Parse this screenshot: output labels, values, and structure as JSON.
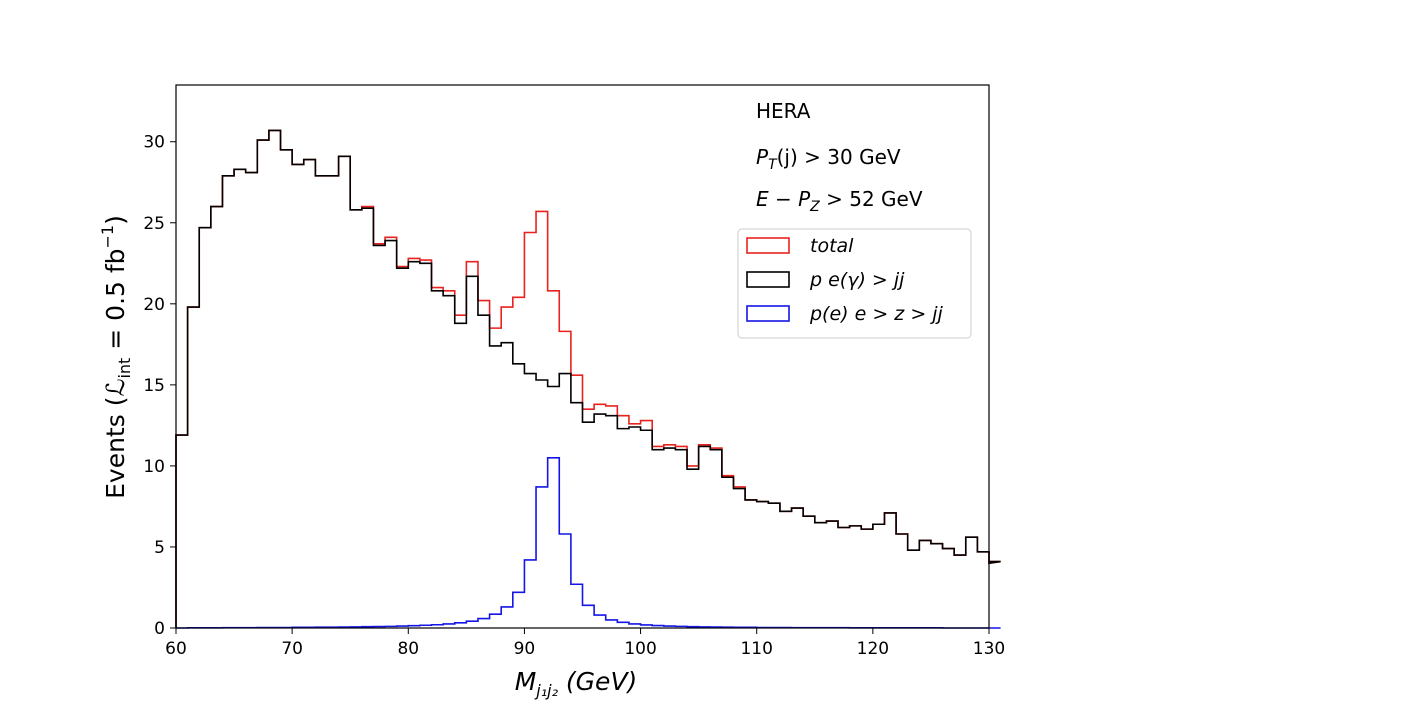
{
  "chart_data": {
    "type": "histogram",
    "xlabel": "M",
    "xlabel_sub": "j₁j₂",
    "xlabel_unit": " (GeV)",
    "ylabel_prefix": "Events (",
    "ylabel_L": "ℒ",
    "ylabel_sub": "int",
    "ylabel_suffix": " = 0.5 fb",
    "ylabel_sup": "−1",
    "ylabel_close": ")",
    "xlim": [
      60,
      130
    ],
    "ylim": [
      0,
      33.5
    ],
    "xticks": [
      "60",
      "70",
      "80",
      "90",
      "100",
      "110",
      "120",
      "130"
    ],
    "yticks": [
      "0",
      "5",
      "10",
      "15",
      "20",
      "25",
      "30"
    ],
    "bin_edges_start": 60,
    "bin_width": 1,
    "annotations": {
      "line1": "HERA",
      "line2_P": "P",
      "line2_sub": "T",
      "line2_rest": "(j) > 30 GeV",
      "line3_E": "E − P",
      "line3_sub": "Z",
      "line3_rest": " > 52 GeV"
    },
    "legend": {
      "position": "upper-right"
    },
    "series": [
      {
        "name": "total",
        "color": "#e8231f",
        "values": [
          11.9,
          19.8,
          24.7,
          26.0,
          27.9,
          28.3,
          28.1,
          30.1,
          30.7,
          29.5,
          28.6,
          28.9,
          27.9,
          27.9,
          29.1,
          25.8,
          26.0,
          23.7,
          24.1,
          22.3,
          22.8,
          22.7,
          21.0,
          20.8,
          19.3,
          22.6,
          20.2,
          18.5,
          19.8,
          20.4,
          24.4,
          25.7,
          20.8,
          18.3,
          15.6,
          13.5,
          13.8,
          13.7,
          13.1,
          12.6,
          12.8,
          11.2,
          11.3,
          11.2,
          10.0,
          11.3,
          11.1,
          9.4,
          8.7,
          7.9,
          7.8,
          7.7,
          7.2,
          7.4,
          6.9,
          6.5,
          6.6,
          6.2,
          6.3,
          6.1,
          6.4,
          7.1,
          5.8,
          4.8,
          5.4,
          5.2,
          4.9,
          4.5,
          5.6,
          4.7,
          4.0,
          4.1
        ]
      },
      {
        "name": "p  e(γ) > jj",
        "color": "#000000",
        "values": [
          11.9,
          19.8,
          24.7,
          26.0,
          27.9,
          28.3,
          28.1,
          30.1,
          30.7,
          29.5,
          28.6,
          28.9,
          27.9,
          27.9,
          29.1,
          25.8,
          25.9,
          23.6,
          23.9,
          22.2,
          22.6,
          22.5,
          20.8,
          20.5,
          18.8,
          21.7,
          19.3,
          17.4,
          17.6,
          16.3,
          15.7,
          15.3,
          14.9,
          15.7,
          13.9,
          12.7,
          13.2,
          13.1,
          12.3,
          12.4,
          12.2,
          11.0,
          11.1,
          11.0,
          9.8,
          11.2,
          11.0,
          9.3,
          8.6,
          7.9,
          7.8,
          7.7,
          7.2,
          7.4,
          6.9,
          6.5,
          6.6,
          6.2,
          6.3,
          6.1,
          6.4,
          7.1,
          5.8,
          4.8,
          5.4,
          5.2,
          4.9,
          4.5,
          5.6,
          4.7,
          4.0,
          4.1
        ]
      },
      {
        "name": "p(e)  e > z > jj",
        "color": "#1515e6",
        "values": [
          0.0,
          0.01,
          0.01,
          0.01,
          0.02,
          0.02,
          0.02,
          0.03,
          0.03,
          0.03,
          0.04,
          0.04,
          0.05,
          0.05,
          0.06,
          0.07,
          0.08,
          0.09,
          0.1,
          0.12,
          0.14,
          0.17,
          0.2,
          0.25,
          0.32,
          0.42,
          0.58,
          0.85,
          1.3,
          2.2,
          4.2,
          8.7,
          10.5,
          5.8,
          2.7,
          1.4,
          0.8,
          0.5,
          0.35,
          0.25,
          0.19,
          0.15,
          0.12,
          0.1,
          0.08,
          0.07,
          0.06,
          0.05,
          0.04,
          0.04,
          0.03,
          0.03,
          0.03,
          0.02,
          0.02,
          0.02,
          0.02,
          0.02,
          0.01,
          0.01,
          0.01,
          0.01,
          0.01,
          0.01,
          0.01,
          0.01,
          0.0,
          0.0,
          0.0,
          0.0,
          0.0,
          0.0
        ]
      }
    ]
  }
}
